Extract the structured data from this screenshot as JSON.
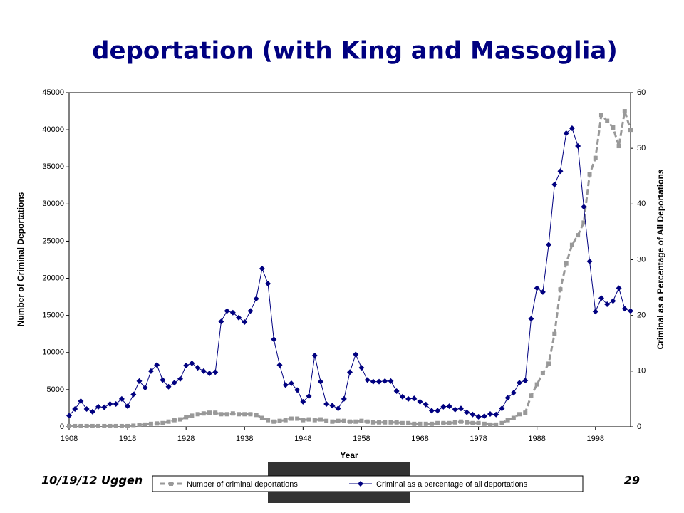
{
  "chart_data": {
    "type": "line",
    "title": "deportation (with King and Massoglia)",
    "xlabel": "Year",
    "ylabel": "Number of Criminal Deportations",
    "y2label": "Criminal as a Percentage of All Deportations",
    "x": [
      1908,
      1909,
      1910,
      1911,
      1912,
      1913,
      1914,
      1915,
      1916,
      1917,
      1918,
      1919,
      1920,
      1921,
      1922,
      1923,
      1924,
      1925,
      1926,
      1927,
      1928,
      1929,
      1930,
      1931,
      1932,
      1933,
      1934,
      1935,
      1936,
      1937,
      1938,
      1939,
      1940,
      1941,
      1942,
      1943,
      1944,
      1945,
      1946,
      1947,
      1948,
      1949,
      1950,
      1951,
      1952,
      1953,
      1954,
      1955,
      1956,
      1957,
      1958,
      1959,
      1960,
      1961,
      1962,
      1963,
      1964,
      1965,
      1966,
      1967,
      1968,
      1969,
      1970,
      1971,
      1972,
      1973,
      1974,
      1975,
      1976,
      1977,
      1978,
      1979,
      1980,
      1981,
      1982,
      1983,
      1984,
      1985,
      1986,
      1987,
      1988,
      1989,
      1990,
      1991,
      1992,
      1993,
      1994,
      1995,
      1996,
      1997,
      1998,
      1999,
      2000,
      2001,
      2002,
      2003,
      2004
    ],
    "xlim": [
      1908,
      2004
    ],
    "xticks": [
      1908,
      1918,
      1928,
      1938,
      1948,
      1958,
      1968,
      1978,
      1988,
      1998
    ],
    "ylim": [
      0,
      45000
    ],
    "yticks": [
      0,
      5000,
      10000,
      15000,
      20000,
      25000,
      30000,
      35000,
      40000,
      45000
    ],
    "y2lim": [
      0,
      60
    ],
    "y2ticks": [
      0,
      10,
      20,
      30,
      40,
      50,
      60
    ],
    "legend": "bottom",
    "series": [
      {
        "name": "Number of criminal deportations",
        "color": "#999999",
        "style": "dashed",
        "marker": "square",
        "values": [
          100,
          100,
          100,
          100,
          100,
          100,
          100,
          100,
          100,
          100,
          100,
          150,
          250,
          300,
          400,
          450,
          500,
          700,
          900,
          1000,
          1300,
          1500,
          1700,
          1800,
          1900,
          1900,
          1700,
          1700,
          1800,
          1700,
          1700,
          1700,
          1600,
          1200,
          900,
          700,
          800,
          900,
          1100,
          1100,
          900,
          1000,
          900,
          1000,
          800,
          700,
          800,
          800,
          700,
          700,
          800,
          700,
          600,
          600,
          600,
          600,
          600,
          500,
          500,
          400,
          400,
          400,
          400,
          500,
          500,
          500,
          600,
          700,
          600,
          500,
          500,
          400,
          300,
          300,
          500,
          900,
          1200,
          1700,
          1900,
          4200,
          5700,
          7200,
          8500,
          12500,
          18500,
          22000,
          24500,
          25800,
          27500,
          34000,
          36200,
          42000,
          41200,
          40300,
          37800,
          42500,
          40000
        ]
      },
      {
        "name": "Criminal as a percentage of all deportations",
        "color": "#000080",
        "style": "solid",
        "marker": "diamond",
        "axis": "y2",
        "values": [
          2.0,
          3.2,
          4.6,
          3.2,
          2.7,
          3.6,
          3.5,
          4.1,
          4.1,
          5.0,
          3.7,
          5.8,
          8.2,
          7.0,
          10.0,
          11.1,
          8.4,
          7.2,
          7.9,
          8.6,
          11.0,
          11.4,
          10.6,
          10.0,
          9.6,
          9.8,
          18.9,
          20.8,
          20.5,
          19.6,
          18.8,
          20.8,
          23.0,
          28.4,
          25.7,
          15.7,
          11.1,
          7.5,
          7.8,
          6.6,
          4.5,
          5.5,
          12.8,
          8.1,
          4.1,
          3.8,
          3.3,
          5.0,
          9.8,
          13.0,
          10.6,
          8.4,
          8.1,
          8.1,
          8.2,
          8.2,
          6.4,
          5.4,
          5.0,
          5.1,
          4.5,
          4.0,
          2.9,
          2.9,
          3.6,
          3.7,
          3.1,
          3.3,
          2.6,
          2.2,
          1.8,
          1.9,
          2.3,
          2.2,
          3.3,
          5.2,
          6.1,
          7.9,
          8.3,
          19.4,
          24.9,
          24.2,
          32.7,
          43.5,
          45.9,
          52.7,
          53.6,
          50.4,
          39.5,
          29.7,
          20.7,
          23.1,
          22.0,
          22.6,
          24.9,
          21.2,
          20.8
        ]
      }
    ]
  },
  "footer": {
    "left": "10/19/12 Uggen",
    "page": "29"
  }
}
